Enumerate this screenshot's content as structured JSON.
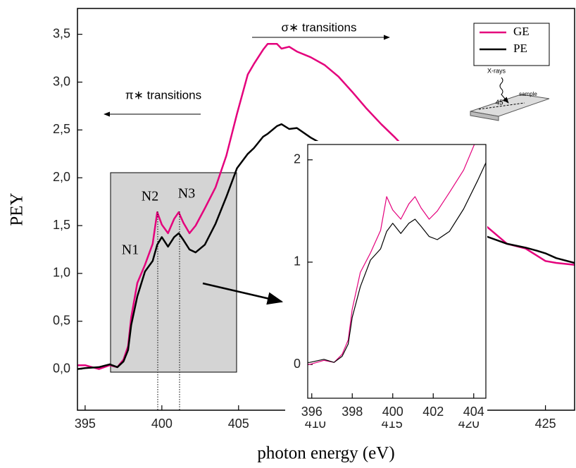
{
  "chart_data": {
    "type": "line",
    "x_label": "photon energy (eV)",
    "y_label": "PEY",
    "xlim": [
      394.5,
      426.9
    ],
    "ylim": [
      -0.43,
      3.77
    ],
    "xticks": [
      395,
      400,
      405,
      410,
      415,
      420,
      425
    ],
    "yticks": [
      {
        "value": 0,
        "label": "0,0"
      },
      {
        "value": 0.5,
        "label": "0,5"
      },
      {
        "value": 1,
        "label": "1,0"
      },
      {
        "value": 1.5,
        "label": "1,5"
      },
      {
        "value": 2,
        "label": "2,0"
      },
      {
        "value": 2.5,
        "label": "2,5"
      },
      {
        "value": 3,
        "label": "3,0"
      },
      {
        "value": 3.5,
        "label": "3,5"
      }
    ],
    "grid": false,
    "legend": "upper right",
    "x": [
      394.5,
      395,
      395.9,
      396.6,
      397.1,
      397.5,
      397.8,
      398.0,
      398.4,
      398.9,
      399.4,
      399.7,
      400.0,
      400.4,
      400.8,
      401.1,
      401.4,
      401.8,
      402.2,
      402.8,
      403.5,
      404.2,
      404.9,
      405.6,
      406.0,
      406.6,
      406.9,
      407.5,
      407.8,
      408.3,
      408.8,
      409.7,
      410.6,
      411.5,
      412.4,
      413.3,
      414.3,
      415.2,
      416.1,
      417.0,
      417.9,
      419.5,
      421.1,
      422.5,
      423.7,
      424.4,
      425.0,
      425.7,
      426.9
    ],
    "series": [
      {
        "name": "GE",
        "color": "#e4007c",
        "values": [
          0.04,
          0.04,
          0.0,
          0.04,
          0.02,
          0.1,
          0.24,
          0.54,
          0.9,
          1.09,
          1.31,
          1.64,
          1.51,
          1.42,
          1.57,
          1.64,
          1.53,
          1.42,
          1.5,
          1.68,
          1.9,
          2.23,
          2.67,
          3.08,
          3.19,
          3.34,
          3.4,
          3.4,
          3.35,
          3.37,
          3.32,
          3.26,
          3.18,
          3.06,
          2.9,
          2.73,
          2.56,
          2.42,
          2.27,
          2.2,
          2.01,
          1.75,
          1.5,
          1.31,
          1.26,
          1.19,
          1.13,
          1.11,
          1.09
        ]
      },
      {
        "name": "PE",
        "color": "#000000",
        "values": [
          0.0,
          0.01,
          0.02,
          0.05,
          0.02,
          0.08,
          0.2,
          0.46,
          0.76,
          1.02,
          1.13,
          1.3,
          1.38,
          1.28,
          1.38,
          1.42,
          1.35,
          1.25,
          1.22,
          1.3,
          1.52,
          1.8,
          2.1,
          2.25,
          2.31,
          2.43,
          2.46,
          2.54,
          2.56,
          2.51,
          2.52,
          2.42,
          2.34,
          2.27,
          2.2,
          2.12,
          2.02,
          1.92,
          1.83,
          1.75,
          1.65,
          1.5,
          1.39,
          1.31,
          1.27,
          1.24,
          1.21,
          1.16,
          1.11
        ]
      }
    ],
    "annotations": [
      "N1",
      "N2",
      "N3",
      "π∗ transitions",
      "σ∗ transitions"
    ],
    "sample_sketch": [
      "X-rays",
      "45°",
      "sample"
    ],
    "inset": {
      "xlim": [
        395.8,
        404.6
      ],
      "ylim": [
        -0.33,
        2.15
      ],
      "xticks": [
        396,
        398,
        400,
        402,
        404
      ],
      "yticks": [
        0,
        1,
        2
      ]
    }
  }
}
